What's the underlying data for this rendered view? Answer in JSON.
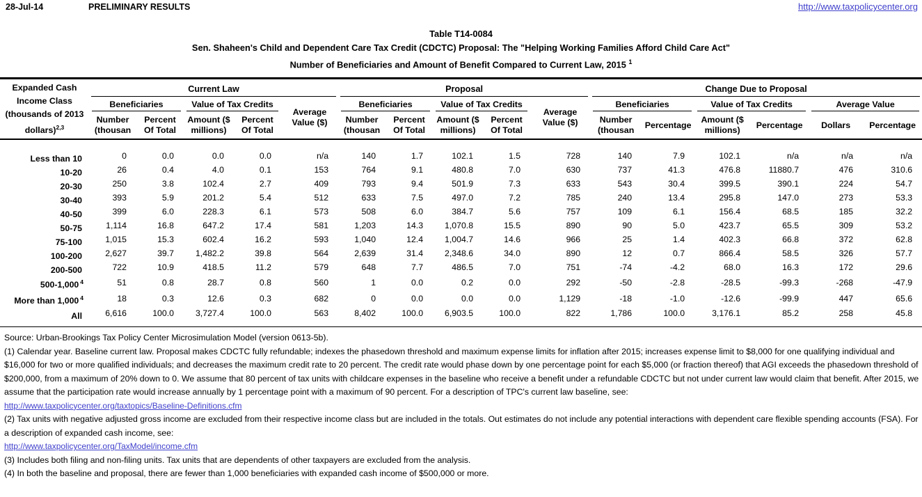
{
  "colors": {
    "link": "#4040cc"
  },
  "page": {
    "date": "28-Jul-14",
    "status": "PRELIMINARY RESULTS",
    "site_link": "http://www.taxpolicycenter.org"
  },
  "title": {
    "line1": "Table T14-0084",
    "line2": "Sen. Shaheen's Child and Dependent Care Tax Credit (CDCTC) Proposal: The \"Helping Working Families Afford Child Care Act\"",
    "line3": "Number of Beneficiaries and Amount of Benefit Compared to Current Law, 2015",
    "line3_sup": "1"
  },
  "table": {
    "row_header": {
      "label": "Expanded Cash Income Class (thousands of 2013 dollars)",
      "sup": "2,3"
    },
    "groups": {
      "current_law": "Current Law",
      "proposal": "Proposal",
      "change": "Change Due to Proposal"
    },
    "subheaders": {
      "beneficiaries": "Beneficiaries",
      "value_of_tax_credits": "Value of Tax Credits",
      "average_value_dollars": "Average\nValue ($)",
      "average_value": "Average Value",
      "number_thousands": "Number\n(thousan",
      "percent_of_total": "Percent\nOf Total",
      "amount_millions": "Amount ($\nmillions)",
      "percentage": "Percentage",
      "dollars": "Dollars"
    },
    "rows": [
      {
        "label": "Less than 10",
        "sup": "",
        "cells": [
          "0",
          "0.0",
          "0.0",
          "0.0",
          "n/a",
          "140",
          "1.7",
          "102.1",
          "1.5",
          "728",
          "140",
          "7.9",
          "102.1",
          "n/a",
          "n/a",
          "n/a"
        ]
      },
      {
        "label": "10-20",
        "sup": "",
        "cells": [
          "26",
          "0.4",
          "4.0",
          "0.1",
          "153",
          "764",
          "9.1",
          "480.8",
          "7.0",
          "630",
          "737",
          "41.3",
          "476.8",
          "11880.7",
          "476",
          "310.6"
        ]
      },
      {
        "label": "20-30",
        "sup": "",
        "cells": [
          "250",
          "3.8",
          "102.4",
          "2.7",
          "409",
          "793",
          "9.4",
          "501.9",
          "7.3",
          "633",
          "543",
          "30.4",
          "399.5",
          "390.1",
          "224",
          "54.7"
        ]
      },
      {
        "label": "30-40",
        "sup": "",
        "cells": [
          "393",
          "5.9",
          "201.2",
          "5.4",
          "512",
          "633",
          "7.5",
          "497.0",
          "7.2",
          "785",
          "240",
          "13.4",
          "295.8",
          "147.0",
          "273",
          "53.3"
        ]
      },
      {
        "label": "40-50",
        "sup": "",
        "cells": [
          "399",
          "6.0",
          "228.3",
          "6.1",
          "573",
          "508",
          "6.0",
          "384.7",
          "5.6",
          "757",
          "109",
          "6.1",
          "156.4",
          "68.5",
          "185",
          "32.2"
        ]
      },
      {
        "label": "50-75",
        "sup": "",
        "cells": [
          "1,114",
          "16.8",
          "647.2",
          "17.4",
          "581",
          "1,203",
          "14.3",
          "1,070.8",
          "15.5",
          "890",
          "90",
          "5.0",
          "423.7",
          "65.5",
          "309",
          "53.2"
        ]
      },
      {
        "label": "75-100",
        "sup": "",
        "cells": [
          "1,015",
          "15.3",
          "602.4",
          "16.2",
          "593",
          "1,040",
          "12.4",
          "1,004.7",
          "14.6",
          "966",
          "25",
          "1.4",
          "402.3",
          "66.8",
          "372",
          "62.8"
        ]
      },
      {
        "label": "100-200",
        "sup": "",
        "cells": [
          "2,627",
          "39.7",
          "1,482.2",
          "39.8",
          "564",
          "2,639",
          "31.4",
          "2,348.6",
          "34.0",
          "890",
          "12",
          "0.7",
          "866.4",
          "58.5",
          "326",
          "57.7"
        ]
      },
      {
        "label": "200-500",
        "sup": "",
        "cells": [
          "722",
          "10.9",
          "418.5",
          "11.2",
          "579",
          "648",
          "7.7",
          "486.5",
          "7.0",
          "751",
          "-74",
          "-4.2",
          "68.0",
          "16.3",
          "172",
          "29.6"
        ]
      },
      {
        "label": "500-1,000",
        "sup": "4",
        "cells": [
          "51",
          "0.8",
          "28.7",
          "0.8",
          "560",
          "1",
          "0.0",
          "0.2",
          "0.0",
          "292",
          "-50",
          "-2.8",
          "-28.5",
          "-99.3",
          "-268",
          "-47.9"
        ]
      },
      {
        "label": "More than 1,000",
        "sup": "4",
        "cells": [
          "18",
          "0.3",
          "12.6",
          "0.3",
          "682",
          "0",
          "0.0",
          "0.0",
          "0.0",
          "1,129",
          "-18",
          "-1.0",
          "-12.6",
          "-99.9",
          "447",
          "65.6"
        ]
      },
      {
        "label": "All",
        "sup": "",
        "cells": [
          "6,616",
          "100.0",
          "3,727.4",
          "100.0",
          "563",
          "8,402",
          "100.0",
          "6,903.5",
          "100.0",
          "822",
          "1,786",
          "100.0",
          "3,176.1",
          "85.2",
          "258",
          "45.8"
        ]
      }
    ]
  },
  "footer": {
    "source": "Source: Urban-Brookings Tax Policy Center Microsimulation Model (version 0613-5b).",
    "note1": "(1) Calendar year. Baseline current law. Proposal makes CDCTC fully refundable; indexes the phasedown threshold and maximum expense limits for inflation after 2015; increases expense limit to $8,000 for one qualifying individual and $16,000 for two or more qualified individuals; and decreases the maximum credit rate to 20 percent. The credit rate would phase down by one percentage point for each $5,000 (or fraction thereof) that AGI exceeds the phasedown threshold of $200,000, from a maximum of 20% down to 0. We assume that 80 percent of tax units with childcare expenses in the baseline who receive a benefit under a refundable CDCTC but not under current law would claim that benefit. After 2015, we assume that the participation rate would increase annually by 1 percentage point with a maximum of 90 percent. For a description of TPC's current law baseline, see:",
    "link1": "http://www.taxpolicycenter.org/taxtopics/Baseline-Definitions.cfm",
    "note2": "(2) Tax units with negative adjusted gross income are excluded from their respective income class but are included in the totals. Out estimates do not include any potential interactions with dependent care flexible spending accounts (FSA). For a description of expanded cash income, see:",
    "link2": "http://www.taxpolicycenter.org/TaxModel/income.cfm",
    "note3": "(3) Includes both filing and non-filing units.  Tax units that are dependents of other taxpayers are excluded from the analysis.",
    "note4": "(4) In both the baseline and proposal, there are fewer than 1,000 beneficiaries with expanded cash income of $500,000 or more."
  }
}
